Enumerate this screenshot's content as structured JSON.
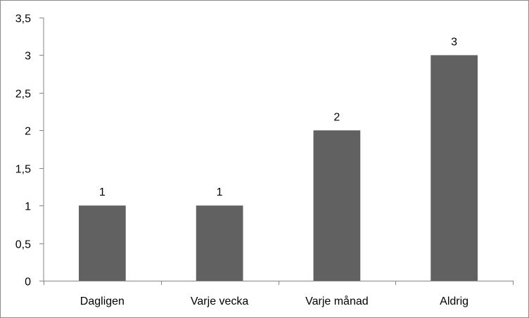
{
  "chart_data": {
    "type": "bar",
    "categories": [
      "Dagligen",
      "Varje vecka",
      "Varje månad",
      "Aldrig"
    ],
    "values": [
      1,
      1,
      2,
      3
    ],
    "data_labels": [
      "1",
      "1",
      "2",
      "3"
    ],
    "ylim": [
      0,
      3.5
    ],
    "y_ticks": [
      0,
      0.5,
      1,
      1.5,
      2,
      2.5,
      3,
      3.5
    ],
    "y_tick_labels": [
      "0",
      "0,5",
      "1",
      "1,5",
      "2",
      "2,5",
      "3",
      "3,5"
    ],
    "grid": false,
    "legend": "none",
    "bar_color": "#616161",
    "axis_color": "#868686",
    "title": "",
    "xlabel": "",
    "ylabel": ""
  }
}
